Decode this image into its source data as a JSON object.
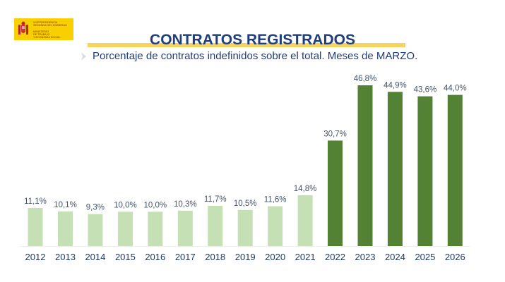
{
  "logo": {
    "lines": [
      "VICEPRESIDENCIA",
      "SEGUNDA DEL GOBIERNO",
      "",
      "MINISTERIO",
      "DE TRABAJO",
      "Y ECONOMÍA SOCIAL"
    ]
  },
  "header": {
    "title": "CONTRATOS REGISTRADOS",
    "subtitle": "Porcentaje de contratos indefinidos sobre el total. Meses de MARZO."
  },
  "colors": {
    "bar_light": "#c5e0b4",
    "bar_dark": "#548235",
    "title": "#1f3d7a",
    "title_underline": "#f6d35f",
    "logo_bg": "#f8d000"
  },
  "chart_data": {
    "type": "bar",
    "title": "CONTRATOS REGISTRADOS",
    "subtitle": "Porcentaje de contratos indefinidos sobre el total. Meses de MARZO.",
    "xlabel": "",
    "ylabel": "",
    "ylim": [
      0,
      50
    ],
    "grid": false,
    "legend": "none",
    "categories": [
      "2012",
      "2013",
      "2014",
      "2015",
      "2016",
      "2017",
      "2018",
      "2019",
      "2020",
      "2021",
      "2022",
      "2023",
      "2024",
      "2025",
      "2026"
    ],
    "values": [
      11.1,
      10.1,
      9.3,
      10.0,
      10.0,
      10.3,
      11.7,
      10.5,
      11.6,
      14.8,
      30.7,
      46.8,
      44.9,
      43.6,
      44.0
    ],
    "labels": [
      "11,1%",
      "10,1%",
      "9,3%",
      "10,0%",
      "10,0%",
      "10,3%",
      "11,7%",
      "10,5%",
      "11,6%",
      "14,8%",
      "30,7%",
      "46,8%",
      "44,9%",
      "43,6%",
      "44,0%"
    ],
    "highlight_from": "2022"
  }
}
